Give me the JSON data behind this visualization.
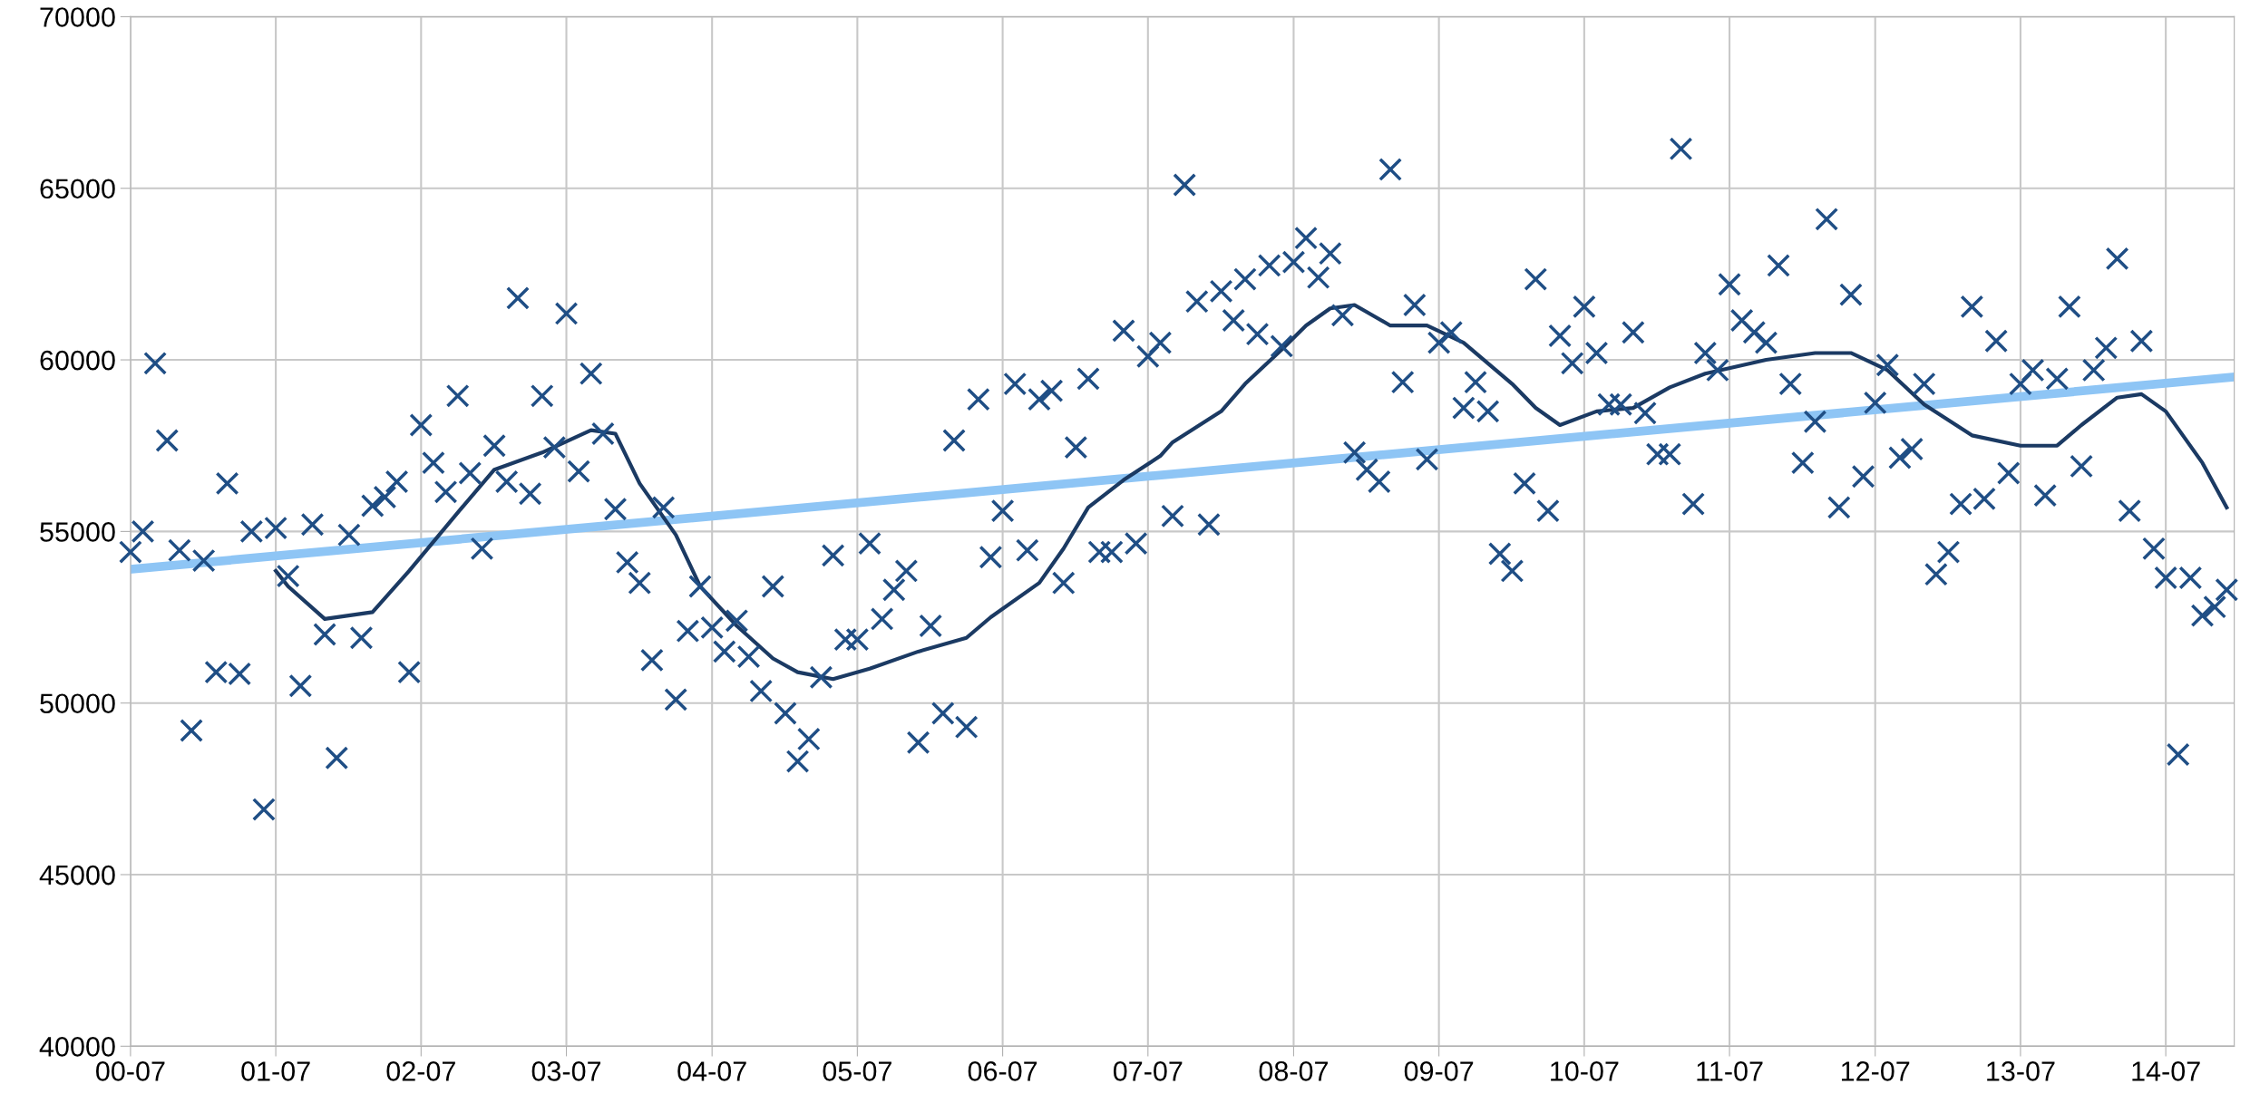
{
  "chart_data": {
    "type": "scatter",
    "grid": true,
    "legend": false,
    "xlim": [
      "2000-07-01",
      "2014-12-20"
    ],
    "ylim": [
      40000,
      70000
    ],
    "yticks": [
      40000,
      45000,
      50000,
      55000,
      60000,
      65000,
      70000
    ],
    "xticks": [
      {
        "value": "2000-07",
        "label": "00-07"
      },
      {
        "value": "2001-07",
        "label": "01-07"
      },
      {
        "value": "2002-07",
        "label": "02-07"
      },
      {
        "value": "2003-07",
        "label": "03-07"
      },
      {
        "value": "2004-07",
        "label": "04-07"
      },
      {
        "value": "2005-07",
        "label": "05-07"
      },
      {
        "value": "2006-07",
        "label": "06-07"
      },
      {
        "value": "2007-07",
        "label": "07-07"
      },
      {
        "value": "2008-07",
        "label": "08-07"
      },
      {
        "value": "2009-07",
        "label": "09-07"
      },
      {
        "value": "2010-07",
        "label": "10-07"
      },
      {
        "value": "2011-07",
        "label": "11-07"
      },
      {
        "value": "2012-07",
        "label": "12-07"
      },
      {
        "value": "2013-07",
        "label": "13-07"
      },
      {
        "value": "2014-07",
        "label": "14-07"
      }
    ],
    "series": [
      {
        "type": "line",
        "color": "#8ec5f5",
        "x": [
          "2000-07",
          "2014-12-20"
        ],
        "values": [
          53900,
          59500
        ]
      },
      {
        "type": "line",
        "color": "#1b3a63",
        "x": [
          "2001-07",
          "2001-08",
          "2001-11",
          "2002-03",
          "2002-06",
          "2002-10",
          "2003-01",
          "2003-05",
          "2003-09",
          "2003-11",
          "2004-01",
          "2004-04",
          "2004-06",
          "2004-09",
          "2004-12",
          "2005-02",
          "2005-05",
          "2005-08",
          "2005-12",
          "2006-04",
          "2006-06",
          "2006-10",
          "2006-12",
          "2007-02",
          "2007-05",
          "2007-08",
          "2007-09",
          "2008-01",
          "2008-03",
          "2008-06",
          "2008-08",
          "2008-10",
          "2008-12",
          "2009-03",
          "2009-06",
          "2009-09",
          "2010-01",
          "2010-03",
          "2010-05",
          "2010-08",
          "2010-11",
          "2011-02",
          "2011-05",
          "2011-10",
          "2012-02",
          "2012-05",
          "2012-08",
          "2012-11",
          "2013-03",
          "2013-07",
          "2013-10",
          "2013-12",
          "2014-03",
          "2014-05",
          "2014-07",
          "2014-10",
          "2014-12"
        ],
        "values": [
          53850,
          53400,
          52450,
          52650,
          53850,
          55550,
          56800,
          57300,
          57950,
          57850,
          56400,
          54900,
          53400,
          52250,
          51300,
          50900,
          50700,
          51000,
          51500,
          51900,
          52500,
          53500,
          54500,
          55700,
          56500,
          57200,
          57600,
          58500,
          59300,
          60300,
          61000,
          61500,
          61600,
          61000,
          61000,
          60500,
          59300,
          58600,
          58100,
          58500,
          58600,
          59200,
          59600,
          60000,
          60200,
          60200,
          59700,
          58700,
          57800,
          57500,
          57500,
          58100,
          58900,
          59000,
          58500,
          57000,
          55700
        ]
      },
      {
        "marker": "cross",
        "color": "#1f4e85",
        "x": [
          "2000-07",
          "2000-08",
          "2000-09",
          "2000-10",
          "2000-11",
          "2000-12",
          "2001-01",
          "2001-02",
          "2001-03",
          "2001-04",
          "2001-05",
          "2001-06",
          "2001-07",
          "2001-08",
          "2001-09",
          "2001-10",
          "2001-11",
          "2001-12",
          "2002-01",
          "2002-02",
          "2002-03",
          "2002-04",
          "2002-05",
          "2002-06",
          "2002-07",
          "2002-08",
          "2002-09",
          "2002-10",
          "2002-11",
          "2002-12",
          "2003-01",
          "2003-02",
          "2003-03",
          "2003-04",
          "2003-05",
          "2003-06",
          "2003-07",
          "2003-08",
          "2003-09",
          "2003-10",
          "2003-11",
          "2003-12",
          "2004-01",
          "2004-02",
          "2004-03",
          "2004-04",
          "2004-05",
          "2004-06",
          "2004-07",
          "2004-08",
          "2004-09",
          "2004-10",
          "2004-11",
          "2004-12",
          "2005-01",
          "2005-02",
          "2005-03",
          "2005-04",
          "2005-05",
          "2005-06",
          "2005-07",
          "2005-08",
          "2005-09",
          "2005-10",
          "2005-11",
          "2005-12",
          "2006-01",
          "2006-02",
          "2006-03",
          "2006-04",
          "2006-05",
          "2006-06",
          "2006-07",
          "2006-08",
          "2006-09",
          "2006-10",
          "2006-11",
          "2006-12",
          "2007-01",
          "2007-02",
          "2007-03",
          "2007-04",
          "2007-05",
          "2007-06",
          "2007-07",
          "2007-08",
          "2007-09",
          "2007-10",
          "2007-11",
          "2007-12",
          "2008-01",
          "2008-02",
          "2008-03",
          "2008-04",
          "2008-05",
          "2008-06",
          "2008-07",
          "2008-08",
          "2008-09",
          "2008-10",
          "2008-11",
          "2008-12",
          "2009-01",
          "2009-02",
          "2009-03",
          "2009-04",
          "2009-05",
          "2009-06",
          "2009-07",
          "2009-08",
          "2009-09",
          "2009-10",
          "2009-11",
          "2009-12",
          "2010-01",
          "2010-02",
          "2010-03",
          "2010-04",
          "2010-05",
          "2010-06",
          "2010-07",
          "2010-08",
          "2010-09",
          "2010-10",
          "2010-11",
          "2010-12",
          "2011-01",
          "2011-02",
          "2011-03",
          "2011-04",
          "2011-05",
          "2011-06",
          "2011-07",
          "2011-08",
          "2011-09",
          "2011-10",
          "2011-11",
          "2011-12",
          "2012-01",
          "2012-02",
          "2012-03",
          "2012-04",
          "2012-05",
          "2012-06",
          "2012-07",
          "2012-08",
          "2012-09",
          "2012-10",
          "2012-11",
          "2012-12",
          "2013-01",
          "2013-02",
          "2013-03",
          "2013-04",
          "2013-05",
          "2013-06",
          "2013-07",
          "2013-08",
          "2013-09",
          "2013-10",
          "2013-11",
          "2013-12",
          "2014-01",
          "2014-02",
          "2014-03",
          "2014-04",
          "2014-05",
          "2014-06",
          "2014-07",
          "2014-08",
          "2014-09",
          "2014-10",
          "2014-11",
          "2014-12"
        ],
        "values": [
          54400,
          55000,
          59900,
          57650,
          54450,
          49200,
          54150,
          50900,
          56400,
          50850,
          55000,
          46900,
          55100,
          53700,
          50500,
          55200,
          52000,
          48400,
          54900,
          51900,
          55750,
          56000,
          56450,
          50900,
          58100,
          57000,
          56150,
          58950,
          56700,
          54500,
          57500,
          56450,
          61800,
          56100,
          58950,
          57450,
          61350,
          56750,
          59600,
          57850,
          55650,
          54100,
          53500,
          51250,
          55700,
          50100,
          52100,
          53400,
          52200,
          51500,
          52400,
          51350,
          50350,
          53400,
          49700,
          48300,
          48950,
          50750,
          54300,
          51850,
          51850,
          54650,
          52450,
          53300,
          53850,
          48850,
          52250,
          49700,
          57650,
          49300,
          58850,
          54250,
          55600,
          59300,
          54450,
          58850,
          59100,
          53500,
          57450,
          59450,
          54400,
          54400,
          60850,
          54650,
          60100,
          60500,
          55450,
          65100,
          61700,
          55200,
          62000,
          61150,
          62350,
          60750,
          62750,
          60400,
          62850,
          63550,
          62400,
          63100,
          61300,
          57300,
          56800,
          56450,
          65550,
          59350,
          61600,
          57100,
          60500,
          60800,
          58600,
          59350,
          58500,
          54350,
          53850,
          56400,
          62350,
          55600,
          60700,
          59900,
          61550,
          60200,
          58700,
          58700,
          60800,
          58450,
          57250,
          57250,
          66150,
          55800,
          60200,
          59700,
          62200,
          61150,
          60800,
          60500,
          62750,
          59300,
          57000,
          58200,
          64100,
          55700,
          61900,
          56600,
          58750,
          59850,
          57150,
          57400,
          59300,
          53750,
          54400,
          55800,
          61550,
          55950,
          60550,
          56700,
          59300,
          59700,
          56050,
          59450,
          61550,
          56900,
          59700,
          60350,
          62950,
          55600,
          60550,
          54500,
          53650,
          48500,
          53650,
          52550,
          52800,
          53300
        ]
      }
    ]
  }
}
